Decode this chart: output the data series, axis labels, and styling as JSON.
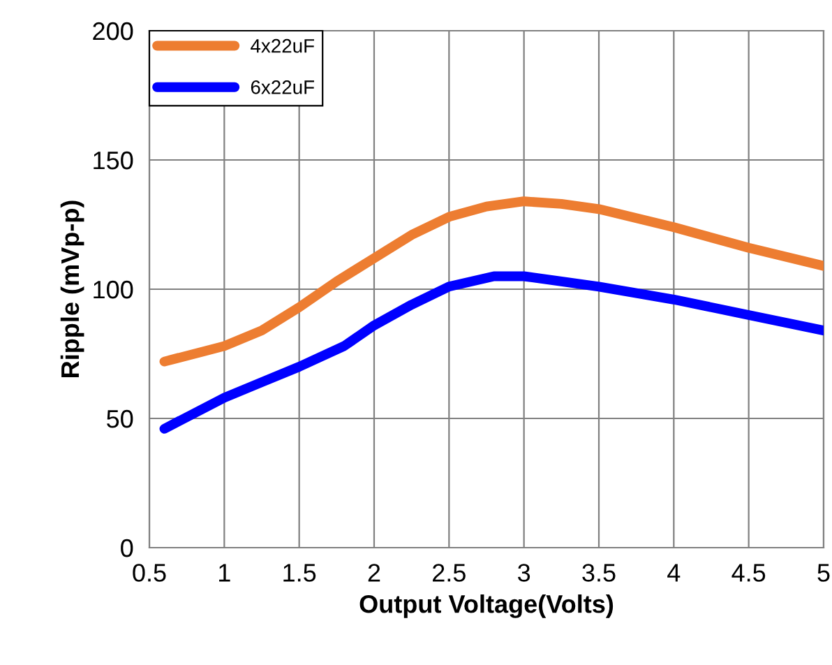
{
  "chart_data": {
    "type": "line",
    "xlabel": "Output Voltage(Volts)",
    "ylabel": "Ripple (mVp-p)",
    "xlim": [
      0.5,
      5
    ],
    "xticks": [
      0.5,
      1,
      1.5,
      2,
      2.5,
      3,
      3.5,
      4,
      4.5,
      5
    ],
    "ylim": [
      0,
      200
    ],
    "yticks": [
      0,
      50,
      100,
      150,
      200
    ],
    "grid": true,
    "legend": "top left",
    "marker": "none",
    "line_style": "solid",
    "series": [
      {
        "name": "4x22uF",
        "color": "#ed7d31",
        "x": [
          0.6,
          1,
          1.25,
          1.5,
          1.75,
          2,
          2.25,
          2.5,
          2.75,
          3,
          3.25,
          3.5,
          4,
          4.5,
          5
        ],
        "values": [
          72,
          78,
          84,
          93,
          103,
          112,
          121,
          128,
          132,
          134,
          133,
          131,
          124,
          116,
          109
        ]
      },
      {
        "name": "6x22uF",
        "color": "#0000ff",
        "x": [
          0.6,
          1,
          1.25,
          1.5,
          1.8,
          2,
          2.25,
          2.5,
          2.8,
          3,
          3.25,
          3.5,
          4,
          4.5,
          5
        ],
        "values": [
          46,
          58,
          64,
          70,
          78,
          86,
          94,
          101,
          105,
          105,
          103,
          101,
          96,
          90,
          84
        ]
      }
    ]
  }
}
